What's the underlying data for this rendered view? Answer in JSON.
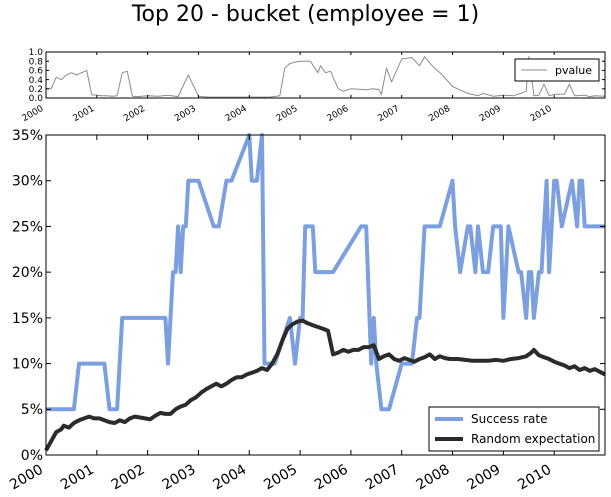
{
  "title": "Top 20 - bucket (employee = 1)",
  "colors": {
    "success": "#7b9fdf",
    "random": "#2b2b2b",
    "pvalue": "#8c8c8c"
  },
  "chart_data": [
    {
      "type": "line",
      "panel": "top",
      "xlim": [
        2000,
        2011.0
      ],
      "ylim": [
        0.0,
        1.0
      ],
      "yticks": [
        "0.0",
        "0.2",
        "0.4",
        "0.6",
        "0.8",
        "1.0"
      ],
      "xticks": [
        "2000",
        "2001",
        "2002",
        "2003",
        "2004",
        "2005",
        "2006",
        "2007",
        "2008",
        "2009",
        "2010"
      ],
      "legend_position": "top-right",
      "series": [
        {
          "name": "pvalue",
          "color": "#8c8c8c",
          "x": [
            2000.0,
            2000.1,
            2000.2,
            2000.3,
            2000.4,
            2000.5,
            2000.6,
            2000.7,
            2000.8,
            2000.9,
            2001.0,
            2001.1,
            2001.2,
            2001.3,
            2001.4,
            2001.5,
            2001.6,
            2001.7,
            2001.8,
            2002.0,
            2002.2,
            2002.4,
            2002.6,
            2002.8,
            2003.0,
            2003.2,
            2003.4,
            2003.6,
            2003.8,
            2004.0,
            2004.2,
            2004.4,
            2004.6,
            2004.7,
            2004.8,
            2004.9,
            2005.0,
            2005.2,
            2005.35,
            2005.4,
            2005.5,
            2005.6,
            2005.75,
            2005.85,
            2006.0,
            2006.3,
            2006.45,
            2006.55,
            2006.6,
            2006.7,
            2006.8,
            2006.9,
            2007.0,
            2007.2,
            2007.35,
            2007.45,
            2007.6,
            2007.7,
            2007.8,
            2008.0,
            2008.3,
            2008.5,
            2008.6,
            2008.8,
            2009.0,
            2009.2,
            2009.35,
            2009.45,
            2009.5,
            2009.6,
            2009.7,
            2009.8,
            2009.9,
            2010.0,
            2010.2,
            2010.3,
            2010.4,
            2010.6,
            2010.7,
            2010.8,
            2011.0
          ],
          "values": [
            0.2,
            0.2,
            0.45,
            0.4,
            0.5,
            0.55,
            0.5,
            0.55,
            0.6,
            0.07,
            0.06,
            0.05,
            0.05,
            0.04,
            0.05,
            0.55,
            0.58,
            0.04,
            0.03,
            0.05,
            0.04,
            0.06,
            0.03,
            0.5,
            0.04,
            0.02,
            0.02,
            0.02,
            0.02,
            0.02,
            0.02,
            0.02,
            0.05,
            0.65,
            0.75,
            0.78,
            0.8,
            0.8,
            0.55,
            0.7,
            0.55,
            0.58,
            0.2,
            0.15,
            0.2,
            0.18,
            0.2,
            0.18,
            0.08,
            0.65,
            0.35,
            0.6,
            0.85,
            0.88,
            0.7,
            0.9,
            0.7,
            0.6,
            0.5,
            0.25,
            0.1,
            0.05,
            0.1,
            0.04,
            0.06,
            0.05,
            0.1,
            0.15,
            0.9,
            0.05,
            0.06,
            0.3,
            0.05,
            0.08,
            0.08,
            0.3,
            0.05,
            0.06,
            0.03,
            0.05,
            0.04
          ]
        }
      ]
    },
    {
      "type": "line",
      "panel": "main",
      "xlim": [
        2000,
        2011.0
      ],
      "ylim": [
        0,
        35
      ],
      "yticks": [
        "0%",
        "5%",
        "10%",
        "15%",
        "20%",
        "25%",
        "30%",
        "35%"
      ],
      "xticks": [
        "2000",
        "2001",
        "2002",
        "2003",
        "2004",
        "2005",
        "2006",
        "2007",
        "2008",
        "2009",
        "2010"
      ],
      "legend_position": "bottom-right",
      "series": [
        {
          "name": "Success rate",
          "color": "#7b9fdf",
          "x": [
            2000.0,
            2000.55,
            2000.65,
            2001.15,
            2001.25,
            2001.4,
            2001.5,
            2002.35,
            2002.4,
            2002.5,
            2002.55,
            2002.6,
            2002.65,
            2002.7,
            2002.75,
            2002.8,
            2002.9,
            2003.0,
            2003.3,
            2003.4,
            2003.55,
            2003.65,
            2004.0,
            2004.05,
            2004.15,
            2004.25,
            2004.3,
            2004.35,
            2004.4,
            2004.5,
            2004.8,
            2004.9,
            2005.0,
            2005.05,
            2005.1,
            2005.25,
            2005.3,
            2005.45,
            2005.55,
            2005.65,
            2006.2,
            2006.3,
            2006.4,
            2006.45,
            2006.5,
            2006.6,
            2006.75,
            2007.0,
            2007.2,
            2007.3,
            2007.35,
            2007.45,
            2007.55,
            2007.75,
            2008.0,
            2008.05,
            2008.15,
            2008.3,
            2008.35,
            2008.45,
            2008.5,
            2008.6,
            2008.7,
            2008.8,
            2008.95,
            2009.0,
            2009.1,
            2009.3,
            2009.35,
            2009.45,
            2009.5,
            2009.55,
            2009.6,
            2009.7,
            2009.75,
            2009.85,
            2009.9,
            2010.0,
            2010.05,
            2010.15,
            2010.35,
            2010.45,
            2010.5,
            2010.55,
            2010.6,
            2010.7,
            2010.75,
            2010.85,
            2010.9,
            2011.0
          ],
          "values": [
            5,
            5,
            10,
            10,
            5,
            5,
            15,
            15,
            10,
            20,
            20,
            25,
            20,
            25,
            25,
            30,
            30,
            30,
            25,
            25,
            30,
            30,
            35,
            30,
            30,
            35,
            10,
            10,
            10,
            10,
            15,
            10,
            15,
            15,
            25,
            25,
            20,
            20,
            20,
            20,
            25,
            25,
            10,
            15,
            10,
            5,
            5,
            10,
            10,
            15,
            15,
            25,
            25,
            25,
            30,
            25,
            20,
            25,
            25,
            20,
            25,
            20,
            20,
            25,
            25,
            15,
            25,
            20,
            20,
            15,
            20,
            20,
            15,
            20,
            20,
            30,
            20,
            30,
            30,
            25,
            30,
            25,
            30,
            30,
            25,
            25,
            25,
            25,
            25,
            25
          ]
        },
        {
          "name": "Random expectation",
          "color": "#2b2b2b",
          "x": [
            2000.0,
            2000.1,
            2000.2,
            2000.3,
            2000.35,
            2000.45,
            2000.55,
            2000.65,
            2000.75,
            2000.85,
            2000.95,
            2001.05,
            2001.15,
            2001.25,
            2001.35,
            2001.45,
            2001.55,
            2001.65,
            2001.75,
            2001.85,
            2001.95,
            2002.05,
            2002.15,
            2002.25,
            2002.35,
            2002.45,
            2002.55,
            2002.65,
            2002.75,
            2002.85,
            2002.95,
            2003.05,
            2003.15,
            2003.25,
            2003.35,
            2003.45,
            2003.55,
            2003.65,
            2003.75,
            2003.85,
            2003.95,
            2004.05,
            2004.15,
            2004.25,
            2004.35,
            2004.45,
            2004.55,
            2004.65,
            2004.75,
            2004.85,
            2004.95,
            2005.05,
            2005.15,
            2005.25,
            2005.35,
            2005.45,
            2005.55,
            2005.65,
            2005.75,
            2005.85,
            2005.95,
            2006.05,
            2006.15,
            2006.25,
            2006.35,
            2006.45,
            2006.55,
            2006.65,
            2006.75,
            2006.85,
            2006.95,
            2007.05,
            2007.15,
            2007.25,
            2007.35,
            2007.45,
            2007.55,
            2007.65,
            2007.75,
            2007.85,
            2007.95,
            2008.1,
            2008.25,
            2008.4,
            2008.55,
            2008.7,
            2008.85,
            2009.0,
            2009.15,
            2009.3,
            2009.45,
            2009.55,
            2009.6,
            2009.7,
            2009.8,
            2009.9,
            2010.0,
            2010.1,
            2010.2,
            2010.3,
            2010.4,
            2010.5,
            2010.6,
            2010.7,
            2010.8,
            2010.9,
            2011.0
          ],
          "values": [
            0.5,
            1.5,
            2.5,
            2.8,
            3.2,
            3.0,
            3.5,
            3.8,
            4.0,
            4.2,
            4.0,
            4.0,
            3.8,
            3.6,
            3.5,
            3.8,
            3.6,
            4.0,
            4.2,
            4.1,
            4.0,
            3.9,
            4.3,
            4.6,
            4.5,
            4.5,
            5.0,
            5.3,
            5.5,
            6.0,
            6.3,
            6.8,
            7.2,
            7.5,
            7.8,
            7.5,
            7.8,
            8.2,
            8.5,
            8.5,
            8.8,
            9.0,
            9.2,
            9.5,
            9.3,
            10.0,
            11.0,
            12.5,
            13.8,
            14.3,
            14.6,
            14.7,
            14.4,
            14.2,
            14.0,
            13.8,
            13.6,
            11.0,
            11.2,
            11.5,
            11.3,
            11.5,
            11.5,
            11.8,
            11.8,
            12.0,
            10.5,
            10.8,
            11.0,
            10.5,
            10.3,
            10.6,
            10.4,
            10.2,
            10.5,
            10.7,
            11.0,
            10.5,
            10.8,
            10.6,
            10.5,
            10.5,
            10.4,
            10.3,
            10.3,
            10.3,
            10.4,
            10.3,
            10.5,
            10.6,
            10.8,
            11.2,
            11.5,
            10.9,
            10.7,
            10.5,
            10.2,
            10.0,
            9.8,
            9.5,
            9.7,
            9.3,
            9.5,
            9.2,
            9.4,
            9.1,
            8.8
          ]
        }
      ]
    }
  ]
}
